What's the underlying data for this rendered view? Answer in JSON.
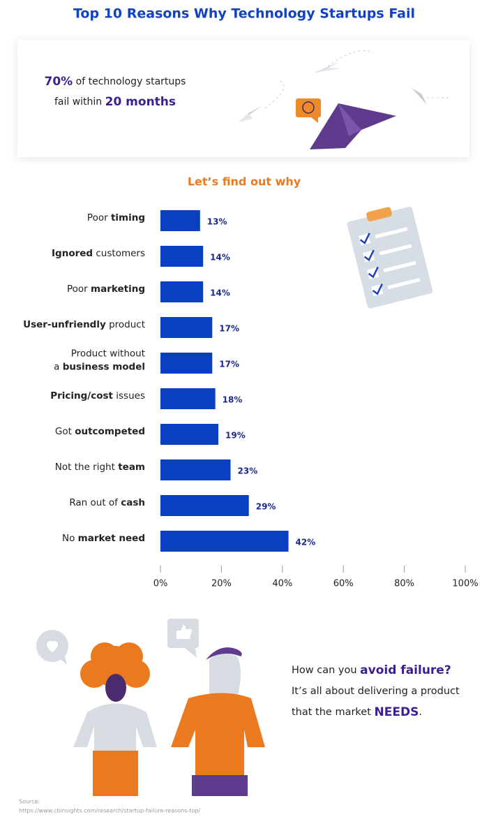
{
  "title": "Top 10 Reasons Why Technology Startups Fail",
  "intro": [
    [
      {
        "text": "70%",
        "em": true
      },
      {
        "text": " of technology startups"
      }
    ],
    [
      {
        "text": "fail within "
      },
      {
        "text": "20 months",
        "em": true
      }
    ]
  ],
  "subtitle": "Let’s find out why",
  "chart_data": {
    "type": "bar",
    "orientation": "horizontal",
    "color": "#0b3fc1",
    "categories": [
      [
        [
          {
            "text": "Poor "
          },
          {
            "text": "timing",
            "bold": true
          }
        ]
      ],
      [
        [
          {
            "text": "Ignored",
            "bold": true
          },
          {
            "text": " customers"
          }
        ]
      ],
      [
        [
          {
            "text": "Poor "
          },
          {
            "text": "marketing",
            "bold": true
          }
        ]
      ],
      [
        [
          {
            "text": "User-unfriendly",
            "bold": true
          },
          {
            "text": " product"
          }
        ]
      ],
      [
        [
          {
            "text": "Product without"
          }
        ],
        [
          {
            "text": "a "
          },
          {
            "text": "business model",
            "bold": true
          }
        ]
      ],
      [
        [
          {
            "text": "Pricing/cost",
            "bold": true
          },
          {
            "text": " issues"
          }
        ]
      ],
      [
        [
          {
            "text": "Got "
          },
          {
            "text": "outcompeted",
            "bold": true
          }
        ]
      ],
      [
        [
          {
            "text": "Not the right "
          },
          {
            "text": "team",
            "bold": true
          }
        ]
      ],
      [
        [
          {
            "text": "Ran out of "
          },
          {
            "text": "cash",
            "bold": true
          }
        ]
      ],
      [
        [
          {
            "text": "No "
          },
          {
            "text": "market need",
            "bold": true
          }
        ]
      ]
    ],
    "values": [
      13,
      14,
      14,
      17,
      17,
      18,
      19,
      23,
      29,
      42
    ],
    "value_labels": [
      "13%",
      "14%",
      "14%",
      "17%",
      "17%",
      "18%",
      "19%",
      "23%",
      "29%",
      "42%"
    ],
    "xlim": [
      0,
      100
    ],
    "xticks": [
      {
        "value": 0,
        "label": "0%"
      },
      {
        "value": 20,
        "label": "20%"
      },
      {
        "value": 40,
        "label": "40%"
      },
      {
        "value": 60,
        "label": "60%"
      },
      {
        "value": 80,
        "label": "80%"
      },
      {
        "value": 100,
        "label": "100%"
      }
    ],
    "grid": false
  },
  "outro": [
    [
      {
        "text": "How can you "
      },
      {
        "text": "avoid failure?",
        "em": true
      }
    ],
    [
      {
        "text": "It’s all about delivering a product"
      }
    ],
    [
      {
        "text": "that the market "
      },
      {
        "text": "NEEDS",
        "em": true
      },
      {
        "text": "."
      }
    ]
  ],
  "source": {
    "label": "Source:",
    "url": "https://www.cbinsights.com/research/startup-failure-reasons-top/"
  }
}
